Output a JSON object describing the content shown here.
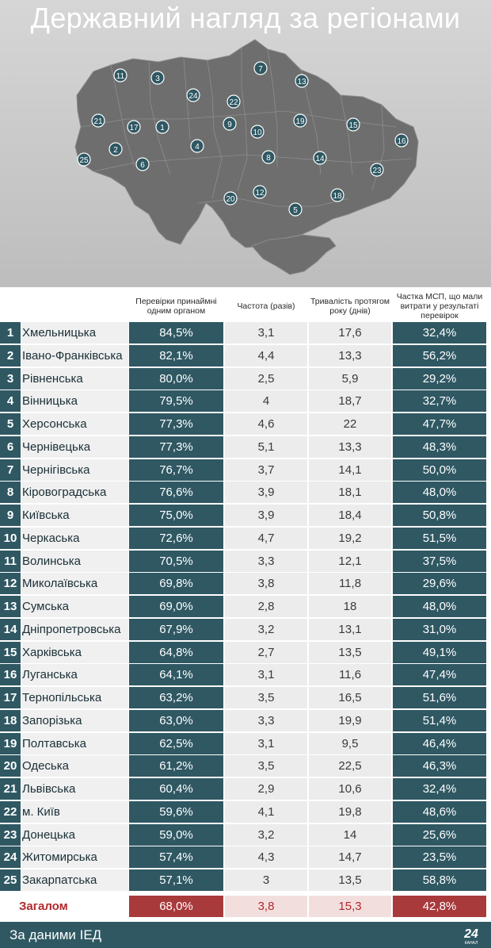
{
  "title": "Державний нагляд за регіонами",
  "map_labels": [
    "11",
    "3",
    "24",
    "7",
    "13",
    "22",
    "21",
    "17",
    "1",
    "9",
    "10",
    "19",
    "15",
    "16",
    "2",
    "25",
    "6",
    "4",
    "8",
    "14",
    "23",
    "20",
    "12",
    "18",
    "5"
  ],
  "columns": [
    "Перевірки принаймні одним органом",
    "Частота (разів)",
    "Тривалість протягом року (днів)",
    "Частка МСП, що мали витрати у результаті перевірок"
  ],
  "rows": [
    {
      "rank": "1",
      "region": "Хмельницька",
      "checked": "84,5%",
      "frequency": "3,1",
      "duration": "17,6",
      "share": "32,4%"
    },
    {
      "rank": "2",
      "region": "Івано-Франківська",
      "checked": "82,1%",
      "frequency": "4,4",
      "duration": "13,3",
      "share": "56,2%"
    },
    {
      "rank": "3",
      "region": "Рівненська",
      "checked": "80,0%",
      "frequency": "2,5",
      "duration": "5,9",
      "share": "29,2%"
    },
    {
      "rank": "4",
      "region": "Вінницька",
      "checked": "79,5%",
      "frequency": "4",
      "duration": "18,7",
      "share": "32,7%"
    },
    {
      "rank": "5",
      "region": "Херсонська",
      "checked": "77,3%",
      "frequency": "4,6",
      "duration": "22",
      "share": "47,7%"
    },
    {
      "rank": "6",
      "region": "Чернівецька",
      "checked": "77,3%",
      "frequency": "5,1",
      "duration": "13,3",
      "share": "48,3%"
    },
    {
      "rank": "7",
      "region": "Чернігівська",
      "checked": "76,7%",
      "frequency": "3,7",
      "duration": "14,1",
      "share": "50,0%"
    },
    {
      "rank": "8",
      "region": "Кіровоградська",
      "checked": "76,6%",
      "frequency": "3,9",
      "duration": "18,1",
      "share": "48,0%"
    },
    {
      "rank": "9",
      "region": "Київська",
      "checked": "75,0%",
      "frequency": "3,9",
      "duration": "18,4",
      "share": "50,8%"
    },
    {
      "rank": "10",
      "region": "Черкаська",
      "checked": "72,6%",
      "frequency": "4,7",
      "duration": "19,2",
      "share": "51,5%"
    },
    {
      "rank": "11",
      "region": "Волинська",
      "checked": "70,5%",
      "frequency": "3,3",
      "duration": "12,1",
      "share": "37,5%"
    },
    {
      "rank": "12",
      "region": "Миколаївська",
      "checked": "69,8%",
      "frequency": "3,8",
      "duration": "11,8",
      "share": "29,6%"
    },
    {
      "rank": "13",
      "region": "Сумська",
      "checked": "69,0%",
      "frequency": "2,8",
      "duration": "18",
      "share": "48,0%"
    },
    {
      "rank": "14",
      "region": "Дніпропетровська",
      "checked": "67,9%",
      "frequency": "3,2",
      "duration": "13,1",
      "share": "31,0%"
    },
    {
      "rank": "15",
      "region": "Харківська",
      "checked": "64,8%",
      "frequency": "2,7",
      "duration": "13,5",
      "share": "49,1%"
    },
    {
      "rank": "16",
      "region": "Луганська",
      "checked": "64,1%",
      "frequency": "3,1",
      "duration": "11,6",
      "share": "47,4%"
    },
    {
      "rank": "17",
      "region": "Тернопільська",
      "checked": "63,2%",
      "frequency": "3,5",
      "duration": "16,5",
      "share": "51,6%"
    },
    {
      "rank": "18",
      "region": "Запорізька",
      "checked": "63,0%",
      "frequency": "3,3",
      "duration": "19,9",
      "share": "51,4%"
    },
    {
      "rank": "19",
      "region": "Полтавська",
      "checked": "62,5%",
      "frequency": "3,1",
      "duration": "9,5",
      "share": "46,4%"
    },
    {
      "rank": "20",
      "region": "Одеська",
      "checked": "61,2%",
      "frequency": "3,5",
      "duration": "22,5",
      "share": "46,3%"
    },
    {
      "rank": "21",
      "region": "Львівська",
      "checked": "60,4%",
      "frequency": "2,9",
      "duration": "10,6",
      "share": "32,4%"
    },
    {
      "rank": "22",
      "region": "м. Київ",
      "checked": "59,6%",
      "frequency": "4,1",
      "duration": "19,8",
      "share": "48,6%"
    },
    {
      "rank": "23",
      "region": "Донецька",
      "checked": "59,0%",
      "frequency": "3,2",
      "duration": "14",
      "share": "25,6%"
    },
    {
      "rank": "24",
      "region": "Житомирська",
      "checked": "57,4%",
      "frequency": "4,3",
      "duration": "14,7",
      "share": "23,5%"
    },
    {
      "rank": "25",
      "region": "Закарпатська",
      "checked": "57,1%",
      "frequency": "3",
      "duration": "13,5",
      "share": "58,8%"
    }
  ],
  "total": {
    "label": "Загалом",
    "checked": "68,0%",
    "frequency": "3,8",
    "duration": "15,3",
    "share": "42,8%"
  },
  "footer": {
    "source": "За даними ІЕД",
    "logo_number": "24",
    "logo_word": "КАНАЛ"
  },
  "colors": {
    "teal": "#2f5863",
    "red": "#a83a3c",
    "map": "#6e6e6e"
  },
  "chart_data": {
    "type": "table",
    "title": "Державний нагляд за регіонами",
    "columns": [
      "Перевірки принаймні одним органом",
      "Частота (разів)",
      "Тривалість протягом року (днів)",
      "Частка МСП, що мали витрати у результаті перевірок"
    ],
    "categories": [
      "Хмельницька",
      "Івано-Франківська",
      "Рівненська",
      "Вінницька",
      "Херсонська",
      "Чернівецька",
      "Чернігівська",
      "Кіровоградська",
      "Київська",
      "Черкаська",
      "Волинська",
      "Миколаївська",
      "Сумська",
      "Дніпропетровська",
      "Харківська",
      "Луганська",
      "Тернопільська",
      "Запорізька",
      "Полтавська",
      "Одеська",
      "Львівська",
      "м. Київ",
      "Донецька",
      "Житомирська",
      "Закарпатська"
    ],
    "series": [
      {
        "name": "Перевірки принаймні одним органом",
        "values": [
          84.5,
          82.1,
          80.0,
          79.5,
          77.3,
          77.3,
          76.7,
          76.6,
          75.0,
          72.6,
          70.5,
          69.8,
          69.0,
          67.9,
          64.8,
          64.1,
          63.2,
          63.0,
          62.5,
          61.2,
          60.4,
          59.6,
          59.0,
          57.4,
          57.1
        ]
      },
      {
        "name": "Частота (разів)",
        "values": [
          3.1,
          4.4,
          2.5,
          4,
          4.6,
          5.1,
          3.7,
          3.9,
          3.9,
          4.7,
          3.3,
          3.8,
          2.8,
          3.2,
          2.7,
          3.1,
          3.5,
          3.3,
          3.1,
          3.5,
          2.9,
          4.1,
          3.2,
          4.3,
          3
        ]
      },
      {
        "name": "Тривалість протягом року (днів)",
        "values": [
          17.6,
          13.3,
          5.9,
          18.7,
          22,
          13.3,
          14.1,
          18.1,
          18.4,
          19.2,
          12.1,
          11.8,
          18,
          13.1,
          13.5,
          11.6,
          16.5,
          19.9,
          9.5,
          22.5,
          10.6,
          19.8,
          14,
          14.7,
          13.5
        ]
      },
      {
        "name": "Частка МСП, що мали витрати у результаті перевірок",
        "values": [
          32.4,
          56.2,
          29.2,
          32.7,
          47.7,
          48.3,
          50.0,
          48.0,
          50.8,
          51.5,
          37.5,
          29.6,
          48.0,
          31.0,
          49.1,
          47.4,
          51.6,
          51.4,
          46.4,
          46.3,
          32.4,
          48.6,
          25.6,
          23.5,
          58.8
        ]
      }
    ],
    "total": {
      "Перевірки принаймні одним органом": 68.0,
      "Частота (разів)": 3.8,
      "Тривалість протягом року (днів)": 15.3,
      "Частка МСП, що мали витрати у результаті перевірок": 42.8
    }
  }
}
